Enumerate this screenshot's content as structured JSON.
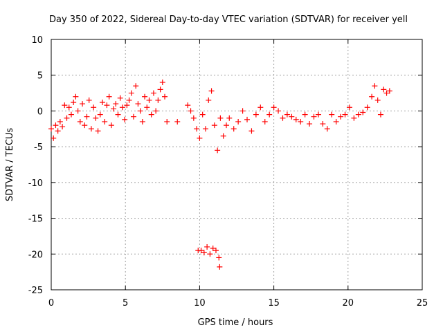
{
  "chart_data": {
    "type": "scatter",
    "title": "Day 350 of 2022, Sidereal Day-to-day VTEC variation (SDTVAR) for receiver yell",
    "xlabel": "GPS time / hours",
    "ylabel": "SDTVAR / TECUs",
    "xlim": [
      0,
      25
    ],
    "ylim": [
      -25,
      10
    ],
    "xticks": [
      0,
      5,
      10,
      15,
      20,
      25
    ],
    "yticks": [
      -25,
      -20,
      -15,
      -10,
      -5,
      0,
      5,
      10
    ],
    "grid": true,
    "marker": "+",
    "series": [
      {
        "name": "SDTVAR",
        "color": "#ff0000",
        "x": [
          0.0,
          0.15,
          0.3,
          0.45,
          0.6,
          0.75,
          0.9,
          1.05,
          1.2,
          1.35,
          1.5,
          1.65,
          1.8,
          1.95,
          2.1,
          2.25,
          2.4,
          2.55,
          2.7,
          2.85,
          3.0,
          3.15,
          3.3,
          3.45,
          3.6,
          3.75,
          3.9,
          4.05,
          4.2,
          4.35,
          4.5,
          4.65,
          4.8,
          4.95,
          5.1,
          5.25,
          5.4,
          5.55,
          5.7,
          5.85,
          6.0,
          6.15,
          6.3,
          6.45,
          6.6,
          6.75,
          6.9,
          7.05,
          7.2,
          7.35,
          7.5,
          7.65,
          7.8,
          8.5,
          9.2,
          9.4,
          9.6,
          9.8,
          10.0,
          10.2,
          10.4,
          10.6,
          10.8,
          11.0,
          11.2,
          11.4,
          11.6,
          11.8,
          12.0,
          12.3,
          12.6,
          12.9,
          13.2,
          13.5,
          13.8,
          14.1,
          14.4,
          14.7,
          15.0,
          15.3,
          15.6,
          15.9,
          16.2,
          16.5,
          16.8,
          17.1,
          17.4,
          17.7,
          18.0,
          18.3,
          18.6,
          18.9,
          19.2,
          19.5,
          19.8,
          20.1,
          20.4,
          20.7,
          21.0,
          21.3,
          21.6,
          21.8,
          22.0,
          22.2,
          22.4,
          22.6,
          22.8,
          9.9,
          10.1,
          10.3,
          10.5,
          10.7,
          10.9,
          11.1,
          11.3,
          11.35
        ],
        "y": [
          -2.5,
          -3.8,
          -2.0,
          -2.8,
          -1.5,
          -2.2,
          0.8,
          -1.0,
          0.5,
          -0.5,
          1.2,
          2.0,
          0.0,
          -1.5,
          1.0,
          -2.0,
          -0.8,
          1.5,
          -2.5,
          0.5,
          -1.0,
          -2.8,
          -0.5,
          1.2,
          -1.5,
          0.8,
          2.0,
          -2.0,
          0.3,
          1.0,
          -0.5,
          1.8,
          0.5,
          -1.2,
          0.8,
          1.5,
          2.5,
          -0.8,
          3.5,
          1.0,
          0.0,
          -1.5,
          2.0,
          0.5,
          1.5,
          -0.5,
          2.5,
          0.0,
          1.5,
          3.0,
          4.0,
          2.0,
          -1.5,
          -1.5,
          0.8,
          0.0,
          -1.0,
          -2.5,
          -3.8,
          -0.5,
          -2.5,
          1.5,
          2.8,
          -2.0,
          -5.5,
          -1.0,
          -3.5,
          -2.0,
          -1.0,
          -2.5,
          -1.5,
          0.0,
          -1.2,
          -2.8,
          -0.5,
          0.5,
          -1.5,
          -0.5,
          0.5,
          0.0,
          -1.0,
          -0.5,
          -0.8,
          -1.2,
          -1.5,
          -0.5,
          -1.8,
          -0.8,
          -0.5,
          -1.8,
          -2.5,
          -0.5,
          -1.5,
          -0.8,
          -0.5,
          0.5,
          -1.0,
          -0.5,
          -0.2,
          0.5,
          2.0,
          3.5,
          1.5,
          -0.5,
          3.0,
          2.5,
          2.8,
          -19.5,
          -19.5,
          -19.8,
          -19.0,
          -20.0,
          -19.2,
          -19.5,
          -20.5,
          -21.8
        ]
      }
    ]
  }
}
